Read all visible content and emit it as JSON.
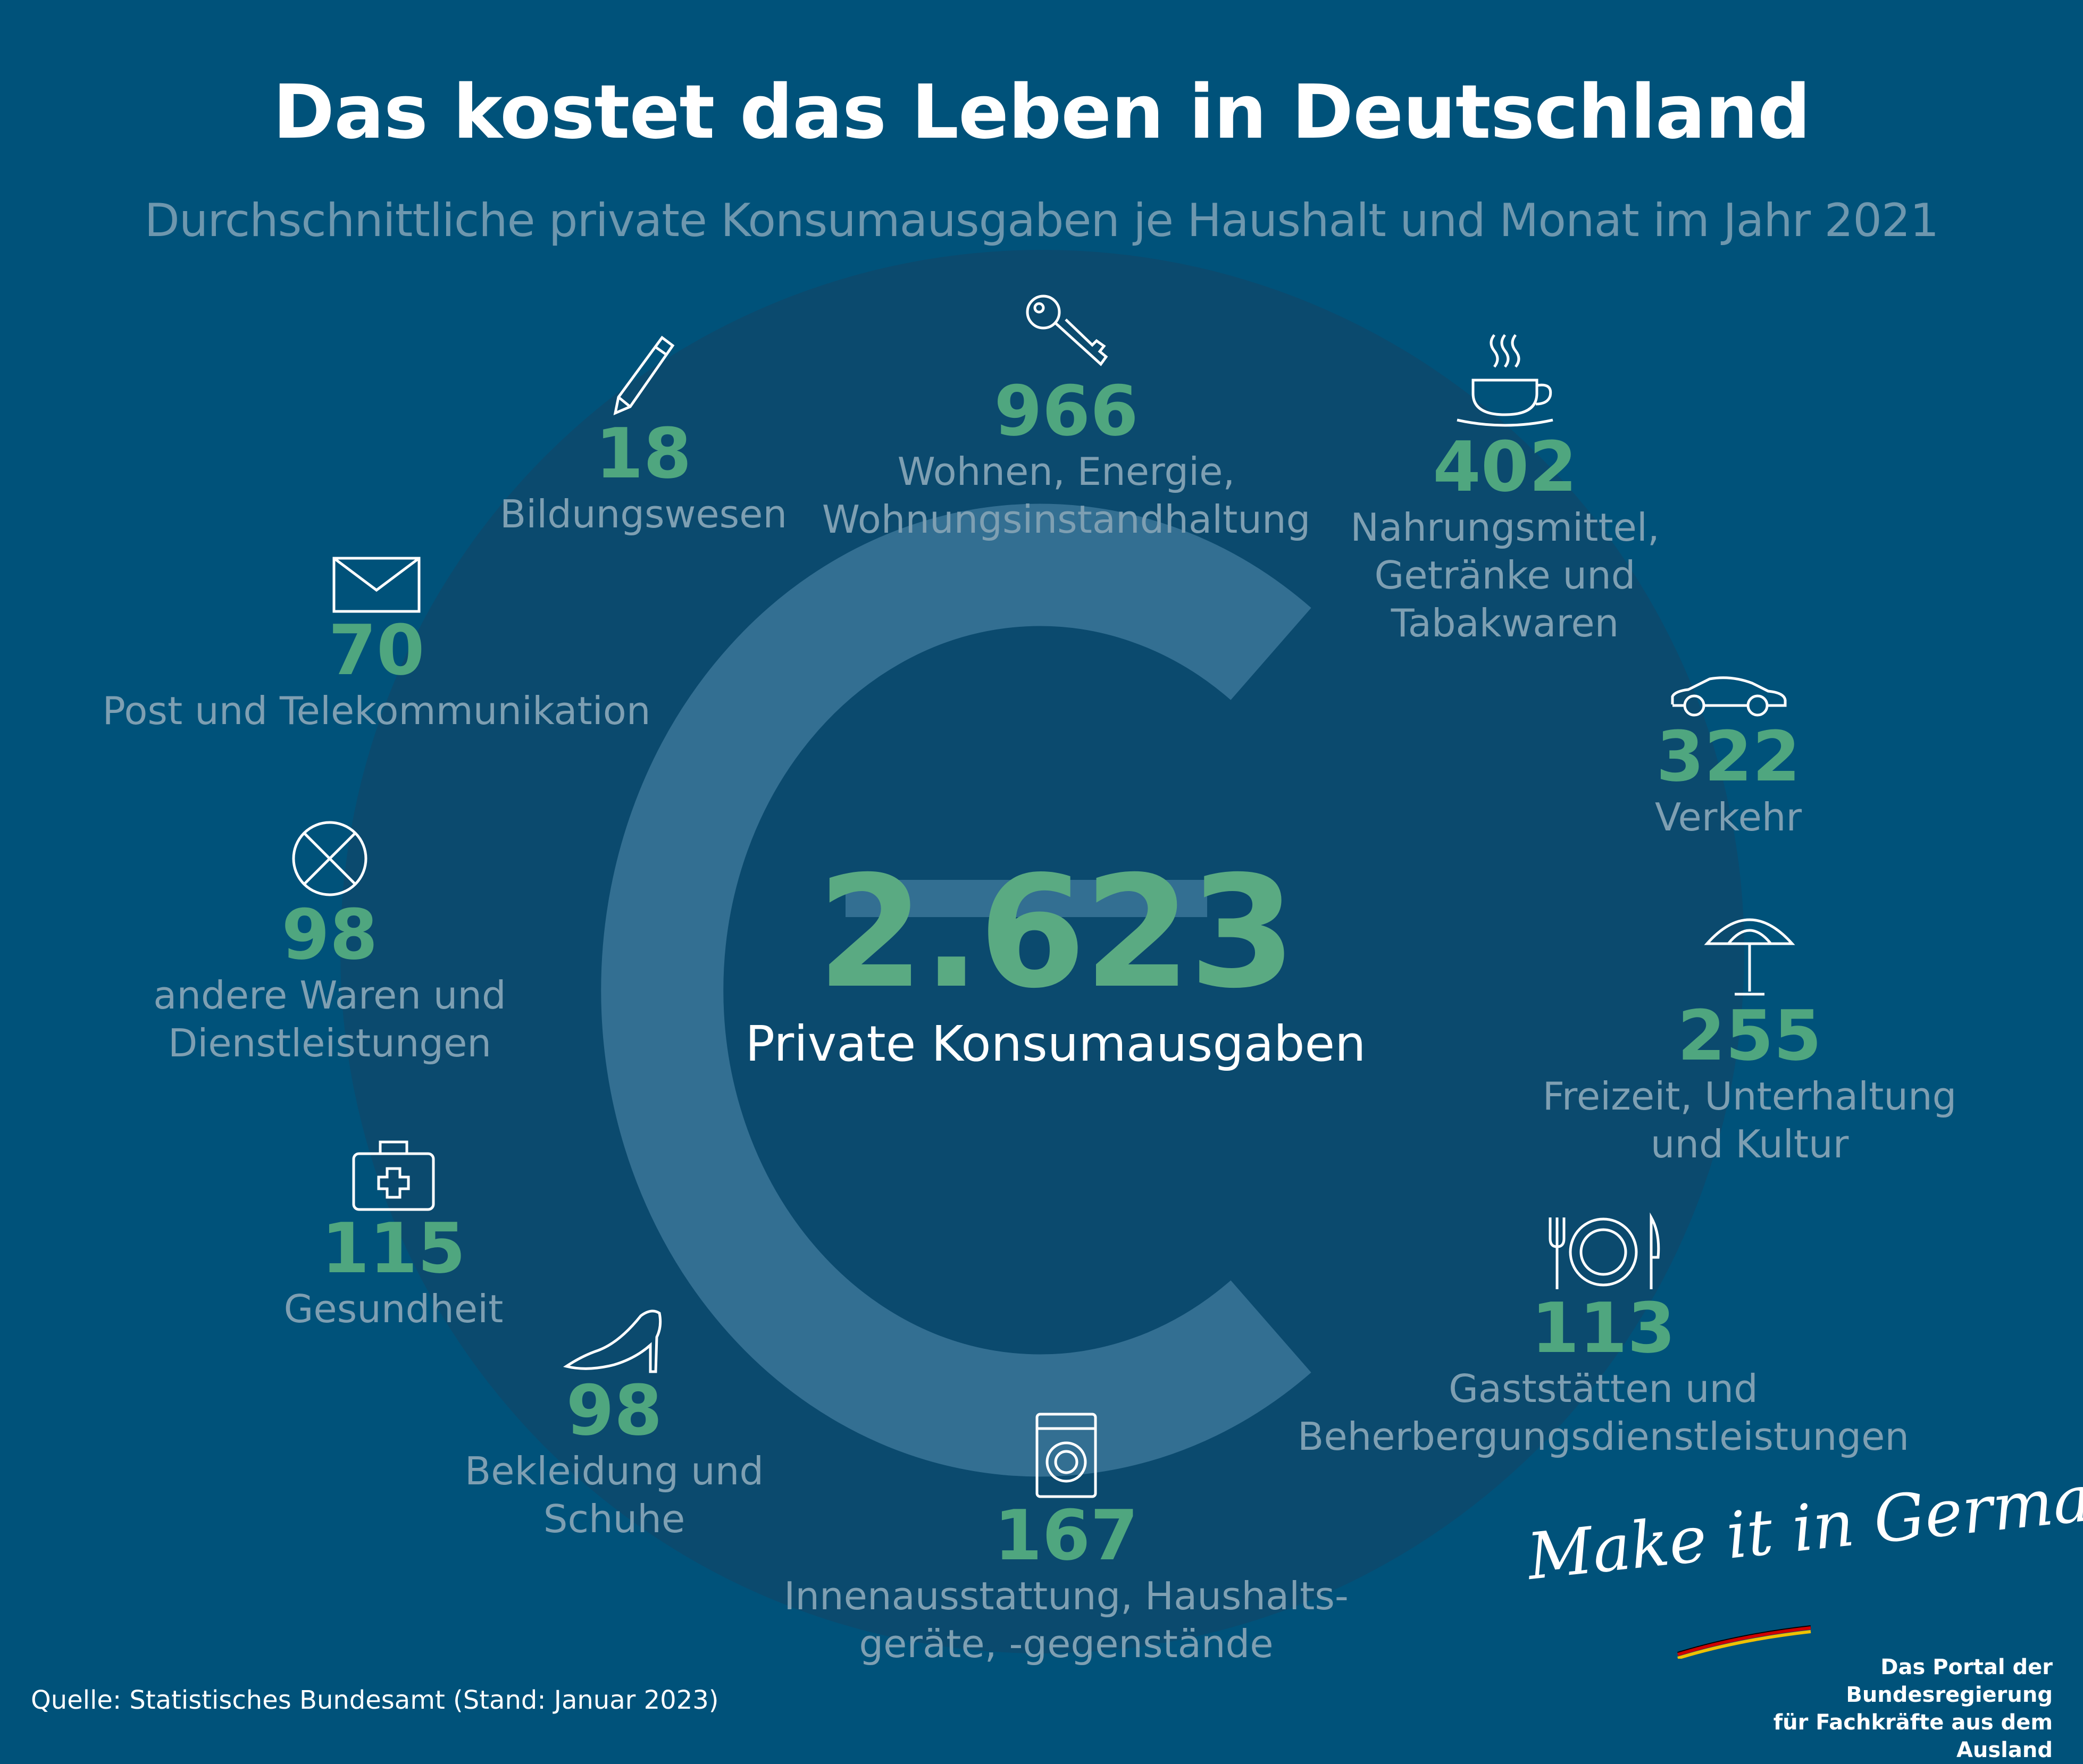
{
  "title": "Das kostet das Leben in Deutschland",
  "subtitle": "Durchschnittliche private Konsumausgaben je Haushalt und Monat im Jahr 2021",
  "total": {
    "value": "2.623",
    "label": "Private Konsumausgaben"
  },
  "categories": [
    {
      "icon": "key-icon",
      "value": "966",
      "label": "Wohnen, Energie,\nWohnungsinstandhaltung"
    },
    {
      "icon": "coffee-cup-icon",
      "value": "402",
      "label": "Nahrungsmittel,\nGetränke und\nTabakwaren"
    },
    {
      "icon": "car-icon",
      "value": "322",
      "label": "Verkehr"
    },
    {
      "icon": "parasol-icon",
      "value": "255",
      "label": "Freizeit, Unterhaltung\nund Kultur"
    },
    {
      "icon": "cutlery-plate-icon",
      "value": "113",
      "label": "Gaststätten und\nBeherbergungsdienstleistungen"
    },
    {
      "icon": "washing-machine-icon",
      "value": "167",
      "label": "Innenausstattung, Haushalts-\ngeräte, -gegenstände"
    },
    {
      "icon": "high-heel-shoe-icon",
      "value": "98",
      "label": "Bekleidung und\nSchuhe"
    },
    {
      "icon": "first-aid-kit-icon",
      "value": "115",
      "label": "Gesundheit"
    },
    {
      "icon": "crossed-circle-icon",
      "value": "98",
      "label": "andere Waren und\nDienstleistungen"
    },
    {
      "icon": "envelope-icon",
      "value": "70",
      "label": "Post und Telekommunikation"
    },
    {
      "icon": "pencil-icon",
      "value": "18",
      "label": "Bildungswesen"
    }
  ],
  "source": "Quelle: Statistisches Bundesamt (Stand: Januar 2023)",
  "branding": {
    "script": "Make it in Germany",
    "portal_line1": "Das Portal der Bundesregierung",
    "portal_line2": "für Fachkräfte aus dem Ausland"
  },
  "colors": {
    "background": "#00527a",
    "value_green": "#4fa67f",
    "label_grey": "#7e9fb2",
    "euro_sign": "#336f92"
  },
  "chart_data": {
    "type": "table",
    "title": "Das kostet das Leben in Deutschland",
    "subtitle": "Durchschnittliche private Konsumausgaben je Haushalt und Monat im Jahr 2021",
    "total": 2623,
    "categories": [
      "Wohnen, Energie, Wohnungsinstandhaltung",
      "Nahrungsmittel, Getränke und Tabakwaren",
      "Verkehr",
      "Freizeit, Unterhaltung und Kultur",
      "Gaststätten und Beherbergungsdienstleistungen",
      "Innenausstattung, Haushaltsgeräte, -gegenstände",
      "Bekleidung und Schuhe",
      "Gesundheit",
      "andere Waren und Dienstleistungen",
      "Post und Telekommunikation",
      "Bildungswesen"
    ],
    "values": [
      966,
      402,
      322,
      255,
      113,
      167,
      98,
      115,
      98,
      70,
      18
    ]
  }
}
